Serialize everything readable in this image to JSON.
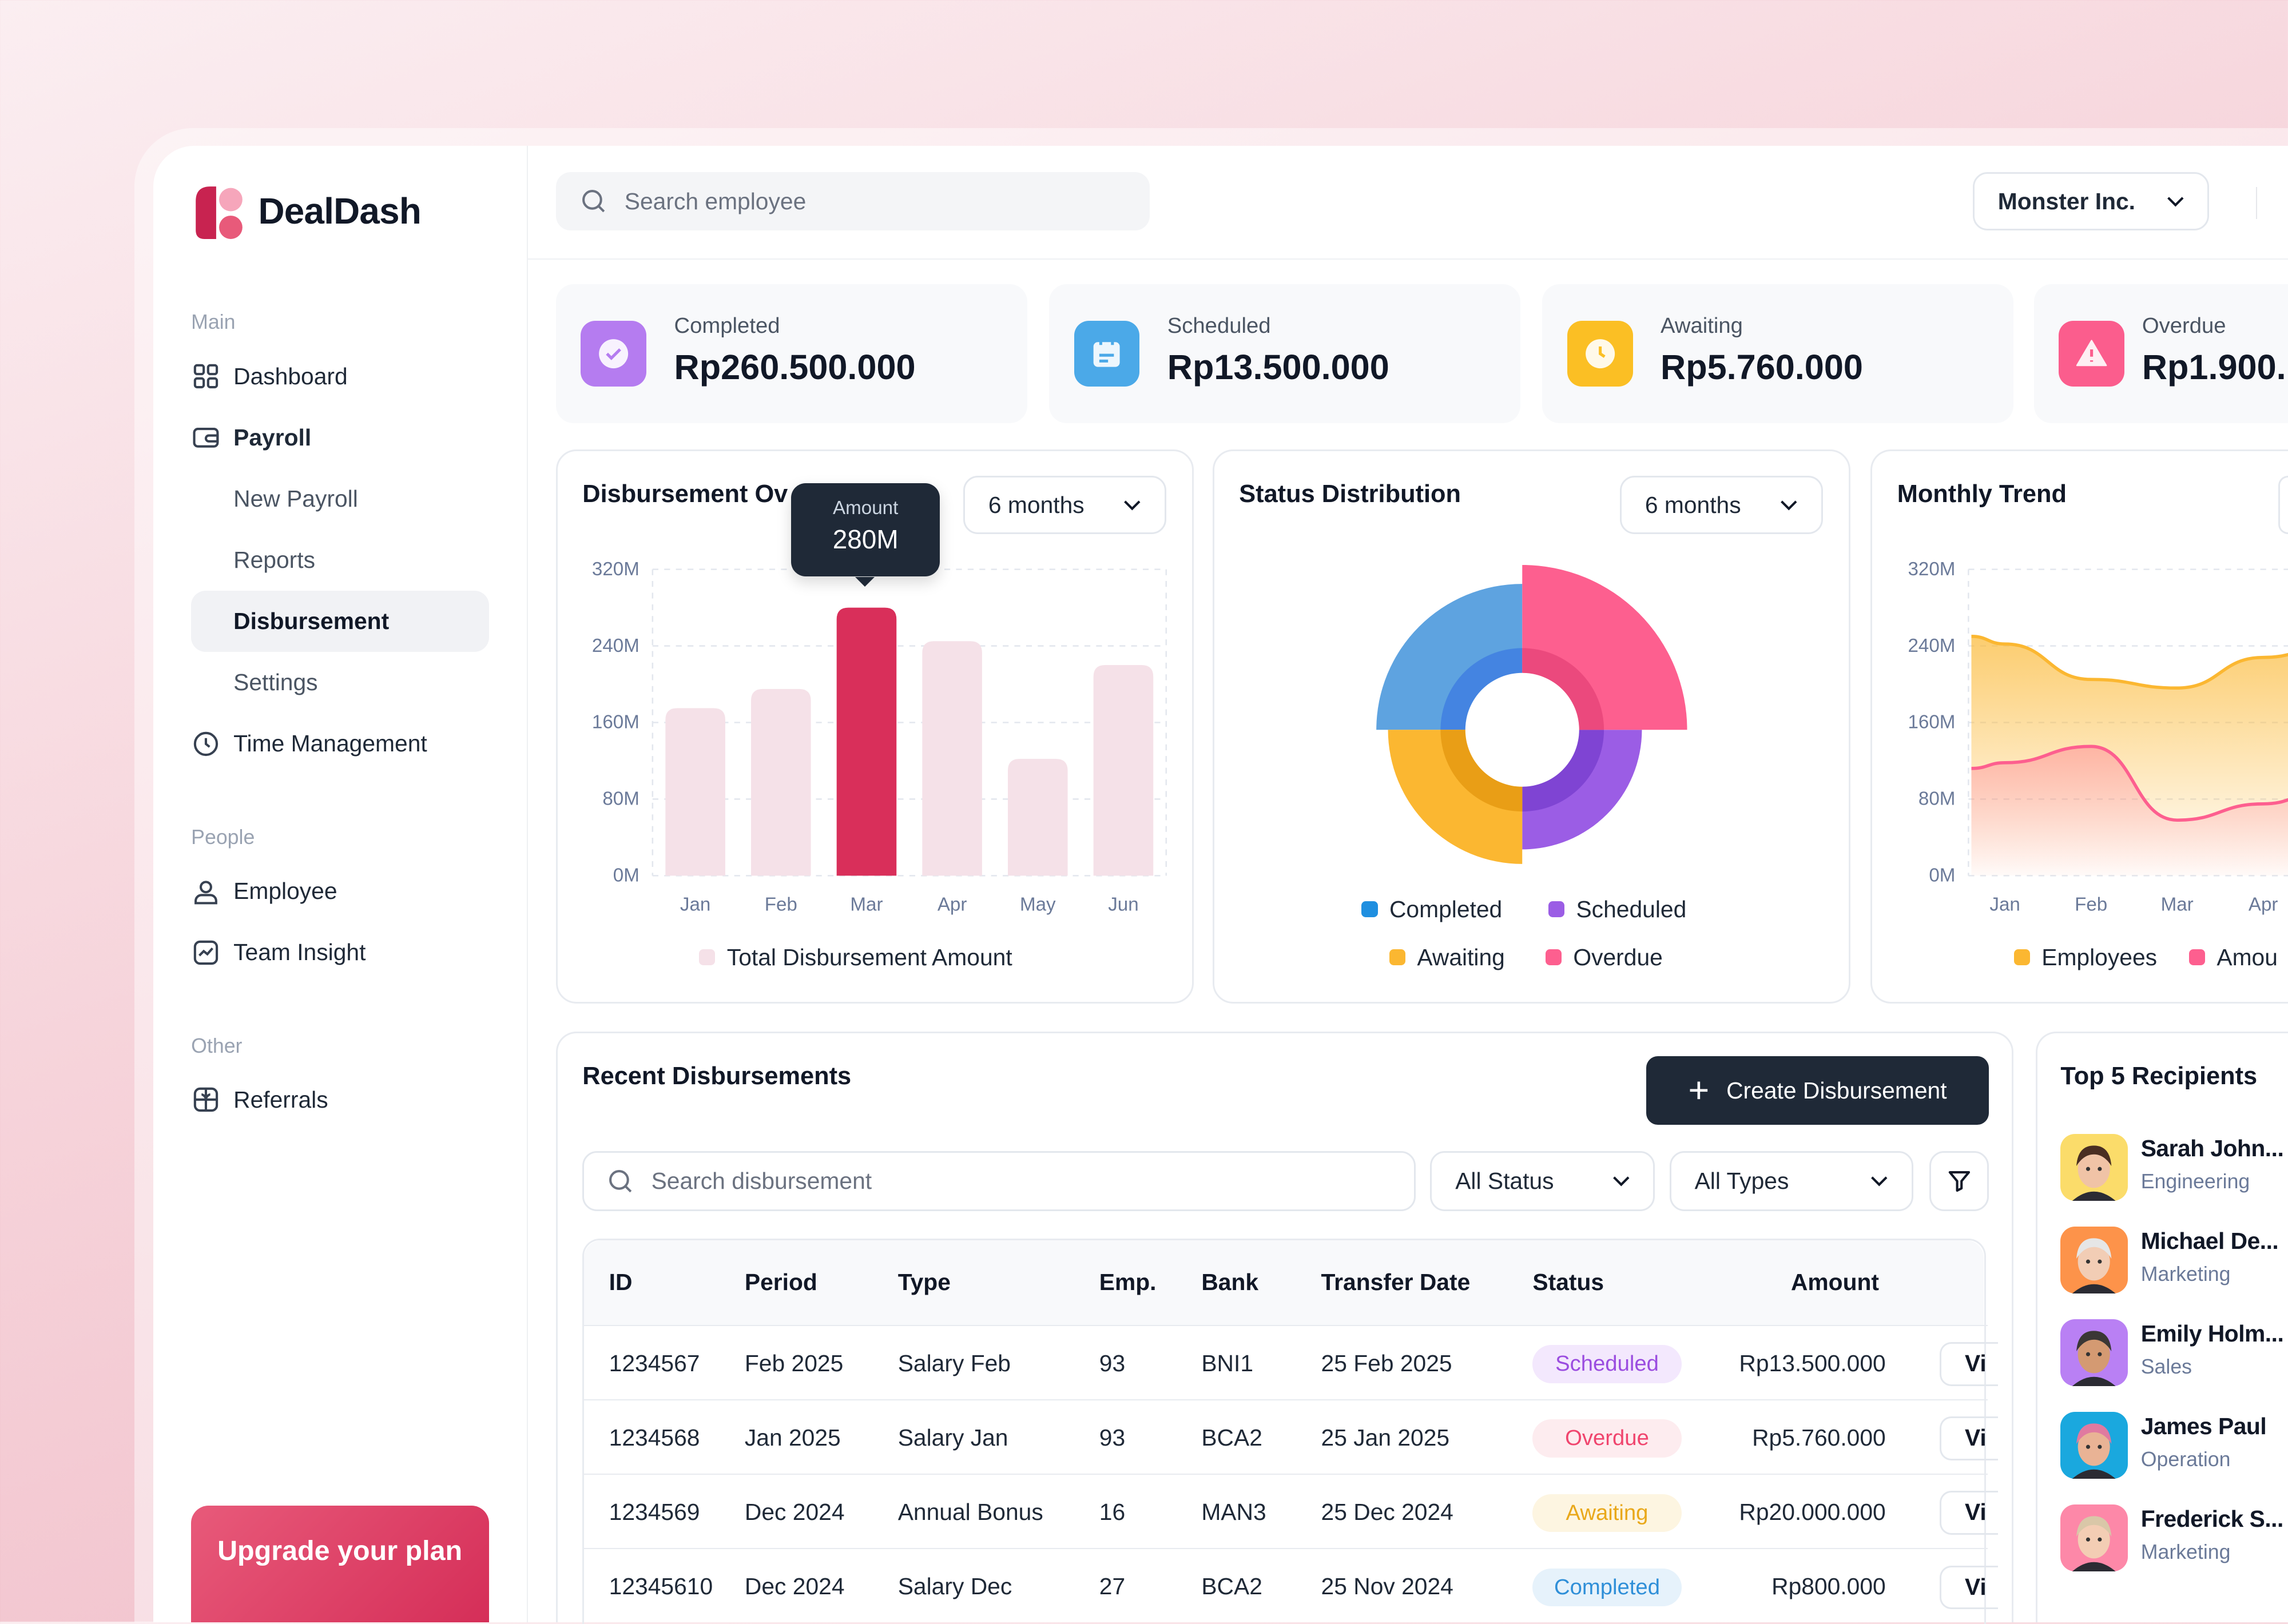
{
  "brand": {
    "name": "DealDash",
    "colors": {
      "primary": "#d92f5a",
      "dark": "#1f2937"
    }
  },
  "sidebar": {
    "sections": [
      {
        "label": "Main",
        "items": [
          {
            "label": "Dashboard",
            "icon": "grid-icon"
          },
          {
            "label": "Payroll",
            "icon": "wallet-icon",
            "expanded": true,
            "children": [
              {
                "label": "New Payroll"
              },
              {
                "label": "Reports"
              },
              {
                "label": "Disbursement",
                "active": true
              },
              {
                "label": "Settings"
              }
            ]
          },
          {
            "label": "Time Management",
            "icon": "clock-icon"
          }
        ]
      },
      {
        "label": "People",
        "items": [
          {
            "label": "Employee",
            "icon": "user-icon"
          },
          {
            "label": "Team Insight",
            "icon": "chart-icon"
          }
        ]
      },
      {
        "label": "Other",
        "items": [
          {
            "label": "Referrals",
            "icon": "gift-icon"
          }
        ]
      }
    ],
    "upgrade": "Upgrade your plan"
  },
  "header": {
    "search_placeholder": "Search employee",
    "company": "Monster Inc."
  },
  "kpis": [
    {
      "label": "Completed",
      "value": "Rp260.500.000",
      "color": "#b57cf0",
      "icon": "check-circle-icon"
    },
    {
      "label": "Scheduled",
      "value": "Rp13.500.000",
      "color": "#4ba9e8",
      "icon": "calendar-icon"
    },
    {
      "label": "Awaiting",
      "value": "Rp5.760.000",
      "color": "#fbbf24",
      "icon": "clock-icon"
    },
    {
      "label": "Overdue",
      "value": "Rp1.900.",
      "color": "#fb5d8d",
      "icon": "alert-icon"
    }
  ],
  "chart_data": [
    {
      "type": "bar",
      "title": "Disbursement Ov",
      "range_label": "6 months",
      "categories": [
        "Jan",
        "Feb",
        "Mar",
        "Apr",
        "May",
        "Jun"
      ],
      "values": [
        175,
        195,
        280,
        245,
        122,
        220
      ],
      "highlight_index": 2,
      "yticks": [
        "320M",
        "240M",
        "160M",
        "80M",
        "0M"
      ],
      "ylim": [
        0,
        320
      ],
      "tooltip": {
        "label": "Amount",
        "value": "280M"
      },
      "legend": [
        "Total Disbursement Amount"
      ],
      "colors": {
        "bar": "#f5e1e8",
        "highlight": "#d92f5a"
      }
    },
    {
      "type": "polarArea",
      "title": "Status Distribution",
      "range_label": "6 months",
      "categories": [
        "Completed",
        "Scheduled",
        "Awaiting",
        "Overdue"
      ],
      "values": [
        100,
        82,
        92,
        113
      ],
      "colors": [
        "#5ea3e0",
        "#9b5de5",
        "#fbb731",
        "#fd5f8f"
      ]
    },
    {
      "type": "area",
      "title": "Monthly Trend",
      "categories": [
        "Jan",
        "Feb",
        "Mar",
        "Apr"
      ],
      "yticks": [
        "320M",
        "240M",
        "160M",
        "80M",
        "0M"
      ],
      "ylim": [
        0,
        320
      ],
      "series": [
        {
          "name": "Employees",
          "values": [
            242,
            205,
            196,
            228
          ],
          "color": "#fbb731"
        },
        {
          "name": "Amou",
          "values": [
            118,
            135,
            58,
            75
          ],
          "color": "#fd5f8f"
        }
      ]
    }
  ],
  "recent": {
    "title": "Recent Disbursements",
    "create_label": "Create Disbursement",
    "search_placeholder": "Search disbursement",
    "status_filter": "All Status",
    "type_filter": "All Types",
    "columns": [
      "ID",
      "Period",
      "Type",
      "Emp.",
      "Bank",
      "Transfer Date",
      "Status",
      "Amount"
    ],
    "rows": [
      {
        "id": "1234567",
        "period": "Feb 2025",
        "type": "Salary Feb",
        "emp": "93",
        "bank": "BNI1",
        "date": "25 Feb 2025",
        "status": "Scheduled",
        "amount": "Rp13.500.000",
        "action": "Vi"
      },
      {
        "id": "1234568",
        "period": "Jan 2025",
        "type": "Salary Jan",
        "emp": "93",
        "bank": "BCA2",
        "date": "25 Jan 2025",
        "status": "Overdue",
        "amount": "Rp5.760.000",
        "action": "Vi"
      },
      {
        "id": "1234569",
        "period": "Dec 2024",
        "type": "Annual Bonus",
        "emp": "16",
        "bank": "MAN3",
        "date": "25 Dec 2024",
        "status": "Awaiting",
        "amount": "Rp20.000.000",
        "action": "Vi"
      },
      {
        "id": "12345610",
        "period": "Dec 2024",
        "type": "Salary Dec",
        "emp": "27",
        "bank": "BCA2",
        "date": "25 Nov 2024",
        "status": "Completed",
        "amount": "Rp800.000",
        "action": "Vi"
      }
    ],
    "status_colors": {
      "Scheduled": [
        "#f3e8fd",
        "#9b4de0"
      ],
      "Overdue": [
        "#fdecef",
        "#f0456e"
      ],
      "Awaiting": [
        "#fdf5e1",
        "#e9a81a"
      ],
      "Completed": [
        "#e6f2fb",
        "#2f8fd8"
      ]
    }
  },
  "top": {
    "title": "Top 5 Recipients",
    "items": [
      {
        "name": "Sarah John...",
        "dept": "Engineering",
        "bg": "#fbdc6a",
        "hair": "#4a2e22",
        "skin": "#f0c3a6"
      },
      {
        "name": "Michael De...",
        "dept": "Marketing",
        "bg": "#fd934a",
        "hair": "#e6e6e6",
        "skin": "#f2cdb5"
      },
      {
        "name": "Emily Holm...",
        "dept": "Sales",
        "bg": "#b980f4",
        "hair": "#3a3735",
        "skin": "#d49a72"
      },
      {
        "name": "James Paul",
        "dept": "Operation",
        "bg": "#1aa8de",
        "hair": "#e07aa0",
        "skin": "#e9b395"
      },
      {
        "name": "Frederick S...",
        "dept": "Marketing",
        "bg": "#fd88a8",
        "hair": "#d9c7a8",
        "skin": "#f3cdb4"
      }
    ]
  }
}
